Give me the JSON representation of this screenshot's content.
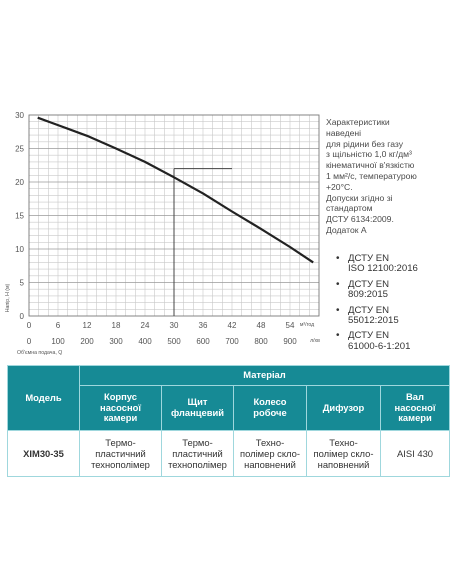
{
  "chart_data": {
    "type": "line",
    "title": "",
    "ylabel": "Напір, Н (м)",
    "xlabel": "Об'ємна подача, Q",
    "ylim": [
      0,
      30
    ],
    "y_ticks": [
      "0",
      "5",
      "10",
      "15",
      "20",
      "25",
      "30"
    ],
    "x_ticks_top": [
      "0",
      "6",
      "12",
      "18",
      "24",
      "30",
      "36",
      "42",
      "48",
      "54"
    ],
    "x_unit_top": "м³/год",
    "x_ticks_bottom": [
      "0",
      "100",
      "200",
      "300",
      "400",
      "500",
      "600",
      "700",
      "800",
      "900"
    ],
    "x_unit_bottom": "л/хв",
    "xlim": [
      0,
      1000
    ],
    "grid": true,
    "series": [
      {
        "x": [
          30,
          100,
          200,
          300,
          400,
          500,
          600,
          700,
          800,
          900,
          980
        ],
        "values": [
          29.6,
          28.5,
          26.9,
          25.0,
          23.0,
          20.7,
          18.3,
          15.6,
          13.0,
          10.3,
          8.0
        ]
      }
    ],
    "marker_point": {
      "x": 500,
      "y": 22
    }
  },
  "notes": {
    "lines": [
      "Характеристики",
      "наведені",
      "для рідини без газу",
      "з щільністю 1,0 кг/дм³",
      "кінематичної в'язкістю",
      "1 мм²/с, температурою",
      "+20°С.",
      "Допуски згідно зі",
      "стандартом",
      "ДСТУ 6134:2009.",
      "Додаток А"
    ]
  },
  "standards": [
    {
      "bullet": "•",
      "lines": [
        "ДСТУ EN",
        "ISO 12100:2016"
      ]
    },
    {
      "bullet": "•",
      "lines": [
        "ДСТУ EN",
        "809:2015"
      ]
    },
    {
      "bullet": "•",
      "lines": [
        "ДСТУ EN",
        "55012:2015"
      ]
    },
    {
      "bullet": "•",
      "lines": [
        "ДСТУ EN",
        "61000-6-1:201"
      ]
    }
  ],
  "table": {
    "model_header": "Модель",
    "group_header": "Матеріал",
    "columns": [
      [
        "Корпус",
        "насосної",
        "камери"
      ],
      [
        "Щит",
        "фланцевий"
      ],
      [
        "Колесо",
        "робоче"
      ],
      [
        "Дифузор"
      ],
      [
        "Вал",
        "насосної",
        "камери"
      ]
    ],
    "rows": [
      {
        "model": "ХІМ30-35",
        "cells": [
          [
            "Термо-",
            "пластичний",
            "технополімер"
          ],
          [
            "Термо-",
            "пластичний",
            "технополімер"
          ],
          [
            "Техно-",
            "полімер скло-",
            "наповнений"
          ],
          [
            "Техно-",
            "полімер скло-",
            "наповнений"
          ],
          [
            "AISI 430"
          ]
        ]
      }
    ]
  }
}
